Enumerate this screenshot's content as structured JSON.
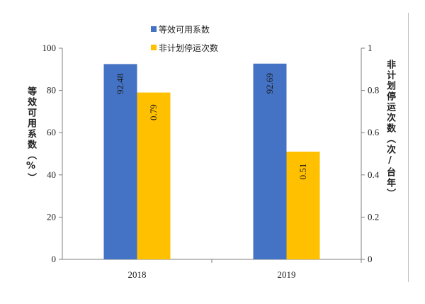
{
  "chart_data": {
    "type": "bar",
    "categories": [
      "2018",
      "2019"
    ],
    "series": [
      {
        "name": "等效可用系数",
        "axis": "left",
        "color": "#4472C4",
        "values": [
          92.48,
          92.69
        ],
        "labels": [
          "92.48",
          "92.69"
        ]
      },
      {
        "name": "非计划停运次数",
        "axis": "right",
        "color": "#FFC000",
        "values": [
          0.79,
          0.51
        ],
        "labels": [
          "0.79",
          "0.51"
        ]
      }
    ],
    "y_left": {
      "label": "等效可用系数（%）",
      "ylim": [
        0,
        100
      ],
      "ticks": [
        "0",
        "20",
        "40",
        "60",
        "80",
        "100"
      ]
    },
    "y_right": {
      "label": "非计划停运次数（次/台年）",
      "ylim": [
        0,
        1
      ],
      "ticks": [
        "0",
        "0.2",
        "0.4",
        "0.6",
        "0.8",
        "1"
      ]
    },
    "legend_position": "top",
    "grid": false,
    "data_label_orientation": "vertical"
  }
}
